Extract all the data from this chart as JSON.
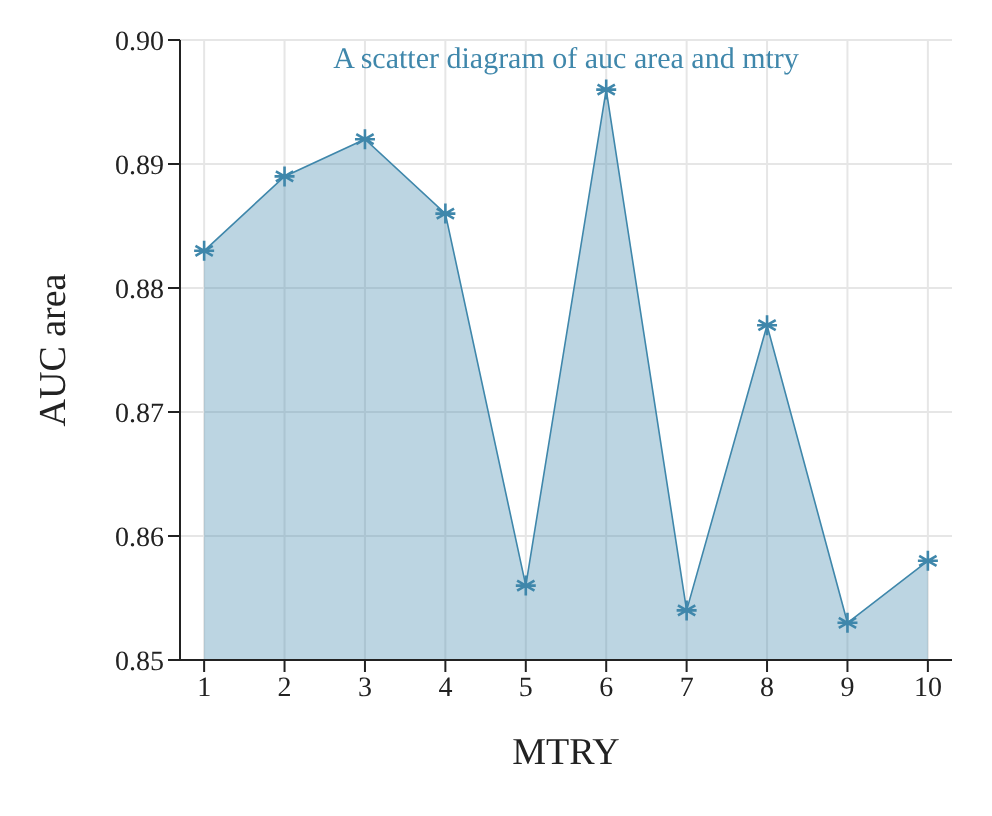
{
  "chart_data": {
    "type": "area",
    "title": "A scatter diagram of auc area and mtry",
    "xlabel": "MTRY",
    "ylabel": "AUC area",
    "x": [
      1,
      2,
      3,
      4,
      5,
      6,
      7,
      8,
      9,
      10
    ],
    "series": [
      {
        "color": "#3f87ab",
        "values": [
          0.883,
          0.889,
          0.892,
          0.886,
          0.856,
          0.896,
          0.854,
          0.877,
          0.853,
          0.858
        ]
      }
    ],
    "xlim": [
      0.7,
      10.3
    ],
    "xticks": [
      1,
      2,
      3,
      4,
      5,
      6,
      7,
      8,
      9,
      10
    ],
    "ylim": [
      0.85,
      0.9
    ],
    "yticks": [
      0.85,
      0.86,
      0.87,
      0.88,
      0.89,
      {
        "value": 0.9,
        "label": "0.90"
      }
    ],
    "grid": true,
    "marker": "cross"
  }
}
